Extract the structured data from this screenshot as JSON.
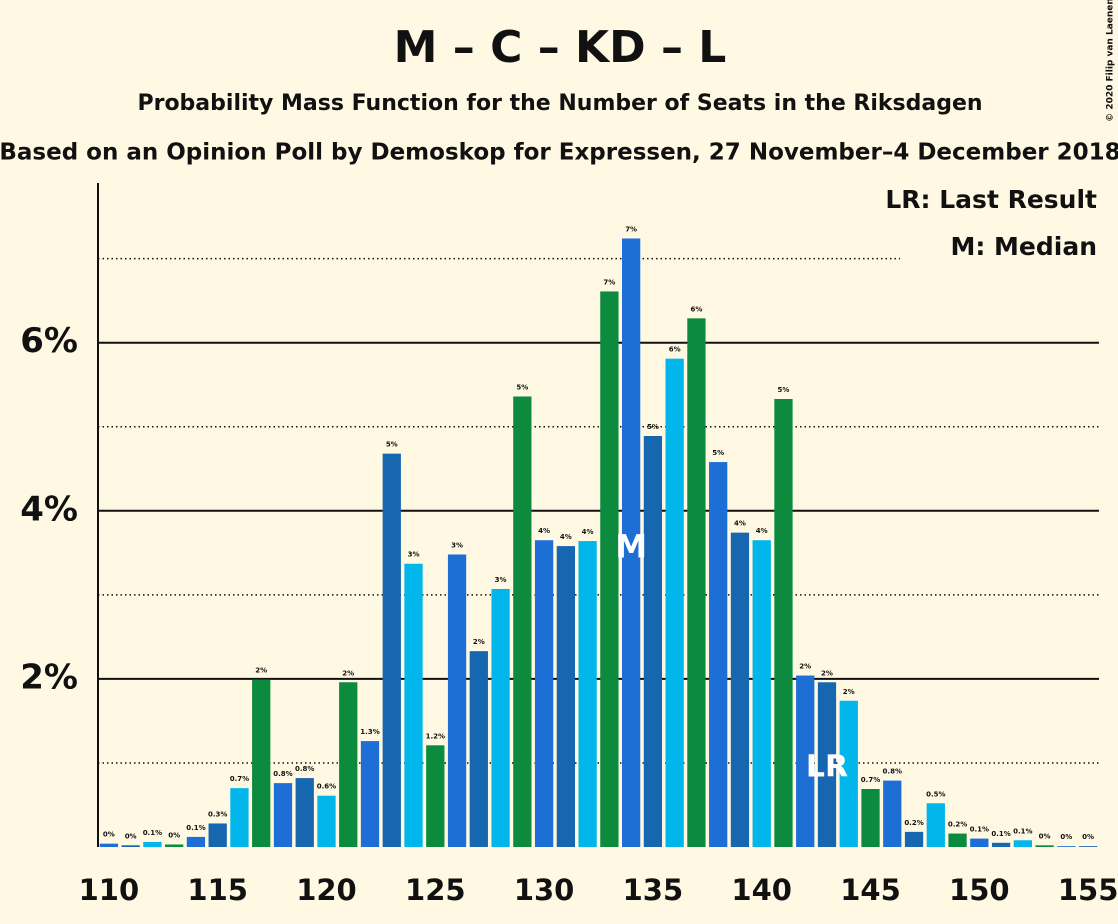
{
  "chart_data": {
    "type": "bar",
    "title": "M – C – KD – L",
    "subtitle": "Probability Mass Function for the Number of Seats in the Riksdagen",
    "subtitle2": "Based on an Opinion Poll by Demoskop for Expressen, 27 November–4 December 2018",
    "copyright": "© 2020 Filip van Laenen",
    "legend": [
      "LR: Last Result",
      "M: Median"
    ],
    "x": [
      110,
      111,
      112,
      113,
      114,
      115,
      116,
      117,
      118,
      119,
      120,
      121,
      122,
      123,
      124,
      125,
      126,
      127,
      128,
      129,
      130,
      131,
      132,
      133,
      134,
      135,
      136,
      137,
      138,
      139,
      140,
      141,
      142,
      143,
      144,
      145,
      146,
      147,
      148,
      149,
      150,
      151,
      152,
      153,
      154,
      155
    ],
    "values": [
      0.04,
      0.02,
      0.06,
      0.03,
      0.12,
      0.28,
      0.7,
      1.99,
      0.76,
      0.82,
      0.61,
      1.96,
      1.26,
      4.68,
      3.37,
      1.21,
      3.48,
      2.33,
      3.07,
      5.36,
      3.65,
      3.58,
      3.64,
      6.61,
      7.24,
      4.89,
      5.81,
      6.29,
      4.58,
      3.74,
      3.65,
      5.33,
      2.04,
      1.96,
      1.74,
      0.69,
      0.79,
      0.18,
      0.52,
      0.16,
      0.1,
      0.05,
      0.08,
      0.02,
      0.01,
      0.01
    ],
    "value_labels": [
      "0%",
      "0%",
      "0.1%",
      "0%",
      "0.1%",
      "0.3%",
      "0.7%",
      "2%",
      "0.8%",
      "0.8%",
      "0.6%",
      "2%",
      "1.3%",
      "5%",
      "3%",
      "1.2%",
      "3%",
      "2%",
      "3%",
      "5%",
      "4%",
      "4%",
      "4%",
      "7%",
      "7%",
      "5%",
      "6%",
      "6%",
      "5%",
      "4%",
      "4%",
      "5%",
      "2%",
      "2%",
      "2%",
      "0.7%",
      "0.8%",
      "0.2%",
      "0.5%",
      "0.2%",
      "0.1%",
      "0.1%",
      "0.1%",
      "0%",
      "0%",
      "0%"
    ],
    "colors": [
      "#1d6fd6",
      "#1766b0",
      "#00b6ea",
      "#0c8a3e"
    ],
    "median": 134,
    "median_label": "M",
    "last_result": 143,
    "last_result_label": "LR",
    "xlim": [
      109.5,
      155.5
    ],
    "xticks": [
      110,
      115,
      120,
      125,
      130,
      135,
      140,
      145,
      150,
      155
    ],
    "ylim": [
      0,
      7.9
    ],
    "yticks": [
      {
        "value": 2,
        "label": "2%"
      },
      {
        "value": 4,
        "label": "4%"
      },
      {
        "value": 6,
        "label": "6%"
      }
    ],
    "minor_gridlines": [
      1,
      3,
      5,
      7
    ],
    "grid": true
  }
}
